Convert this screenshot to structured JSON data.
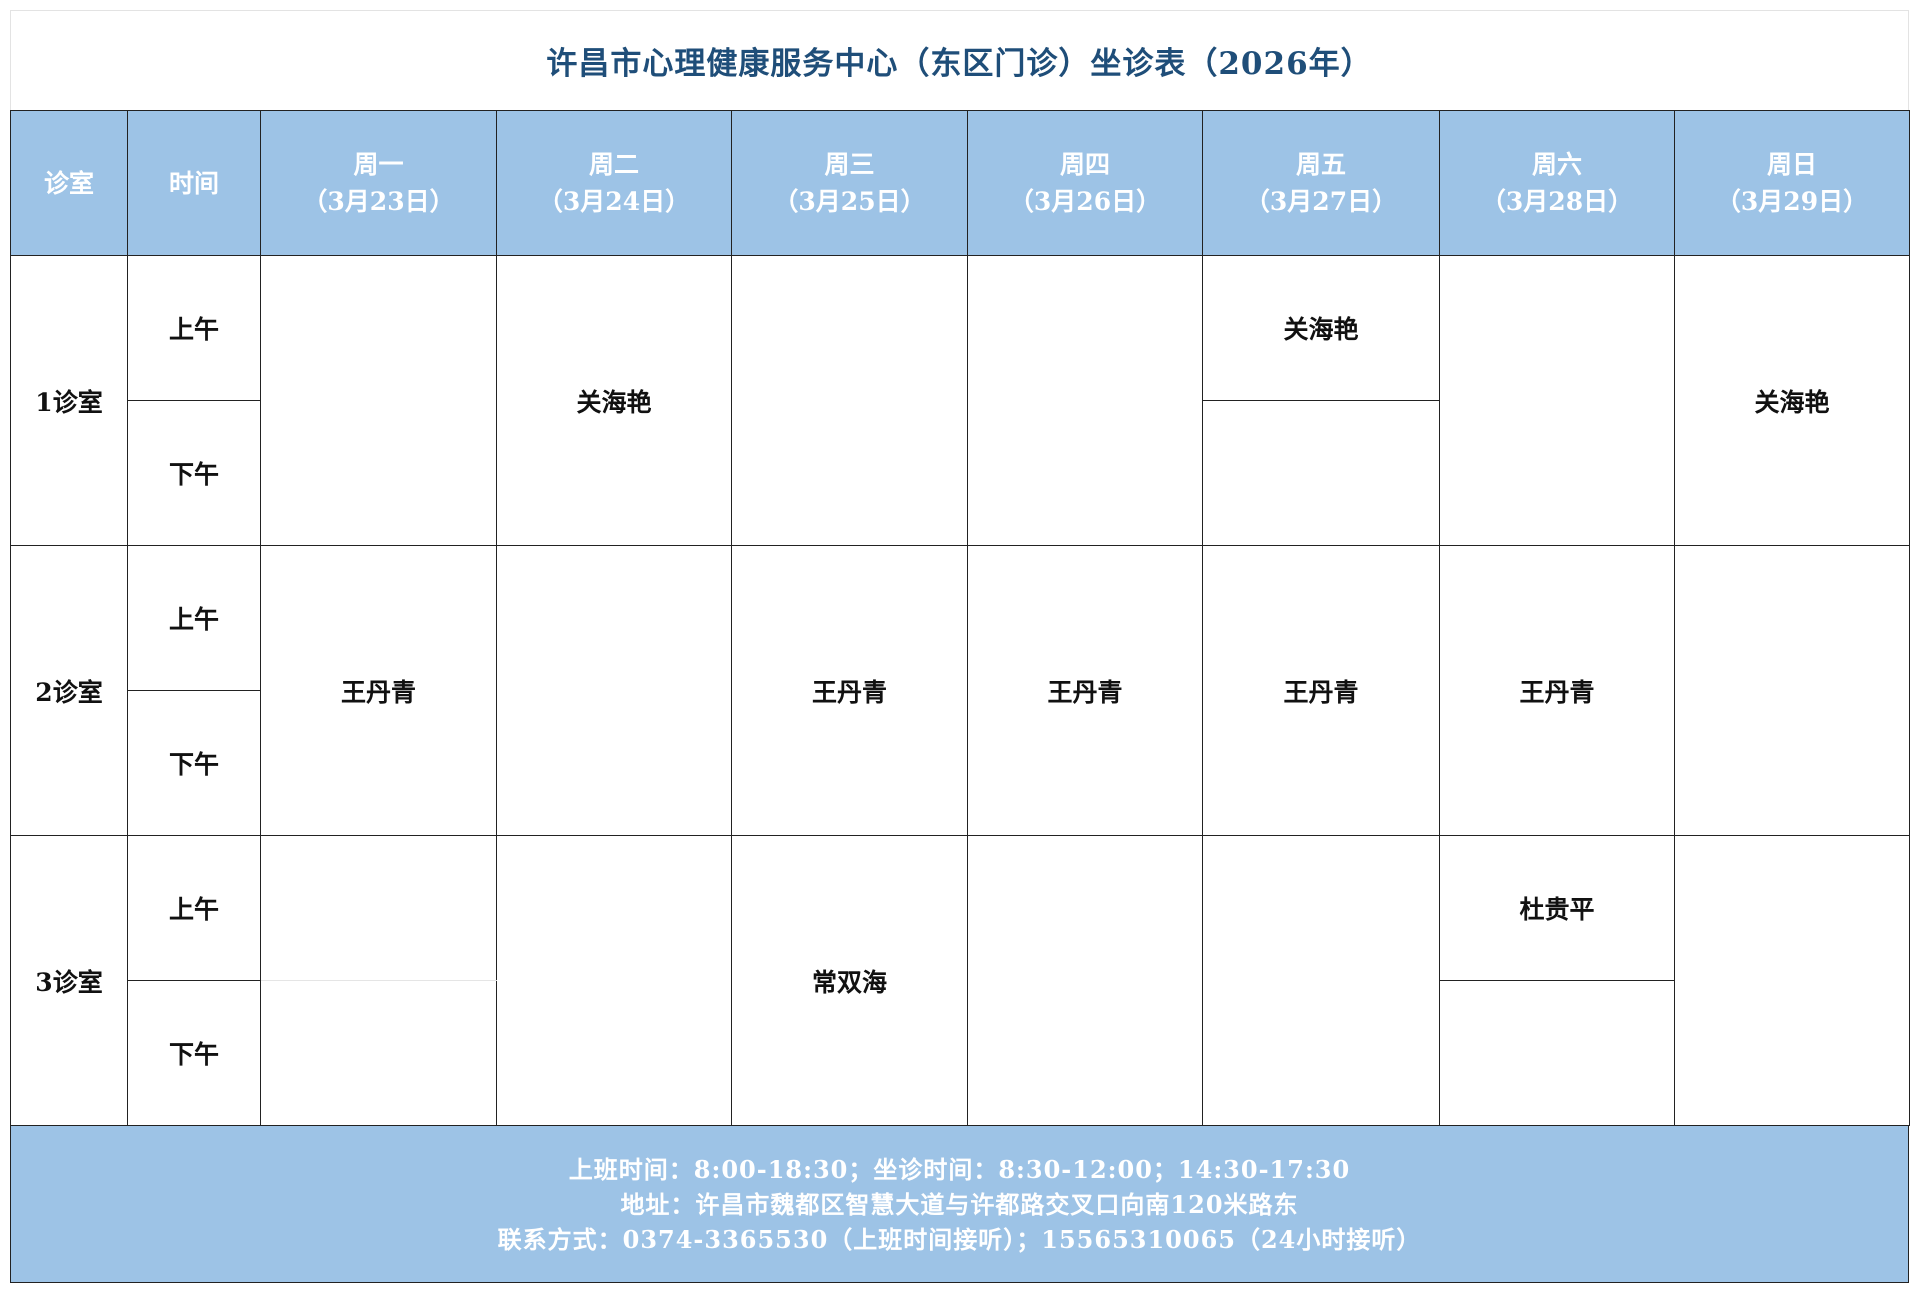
{
  "title": "许昌市心理健康服务中心（东区门诊）坐诊表（2026年）",
  "header": {
    "room_label": "诊室",
    "time_label": "时间",
    "days": [
      {
        "weekday": "周一",
        "date": "（3月23日）"
      },
      {
        "weekday": "周二",
        "date": "（3月24日）"
      },
      {
        "weekday": "周三",
        "date": "（3月25日）"
      },
      {
        "weekday": "周四",
        "date": "（3月26日）"
      },
      {
        "weekday": "周五",
        "date": "（3月27日）"
      },
      {
        "weekday": "周六",
        "date": "（3月28日）"
      },
      {
        "weekday": "周日",
        "date": "（3月29日）"
      }
    ]
  },
  "periods": {
    "am": "上午",
    "pm": "下午"
  },
  "rooms": [
    {
      "name": "1诊室",
      "days": [
        {
          "all": ""
        },
        {
          "all": "关海艳"
        },
        {
          "all": ""
        },
        {
          "all": ""
        },
        {
          "am": "关海艳",
          "pm": ""
        },
        {
          "all": ""
        },
        {
          "all": "关海艳"
        }
      ]
    },
    {
      "name": "2诊室",
      "days": [
        {
          "all": "王丹青"
        },
        {
          "all": ""
        },
        {
          "all": "王丹青"
        },
        {
          "all": "王丹青"
        },
        {
          "all": "王丹青"
        },
        {
          "all": "王丹青"
        },
        {
          "all": ""
        }
      ]
    },
    {
      "name": "3诊室",
      "days": [
        {
          "am": "",
          "pm": "",
          "faint": true
        },
        {
          "all": ""
        },
        {
          "all": "常双海"
        },
        {
          "all": ""
        },
        {
          "all": ""
        },
        {
          "am": "杜贵平",
          "pm": ""
        },
        {
          "all": ""
        }
      ]
    }
  ],
  "footer": {
    "hours": "上班时间：8:00-18:30；坐诊时间：8:30-12:00；14:30-17:30",
    "address": "地址：许昌市魏都区智慧大道与许都路交叉口向南120米路东",
    "contact": "联系方式：0374-3365530（上班时间接听）；15565310065（24小时接听）"
  },
  "colors": {
    "header_bg": "#9dc3e6",
    "title_text": "#1f4e79"
  }
}
